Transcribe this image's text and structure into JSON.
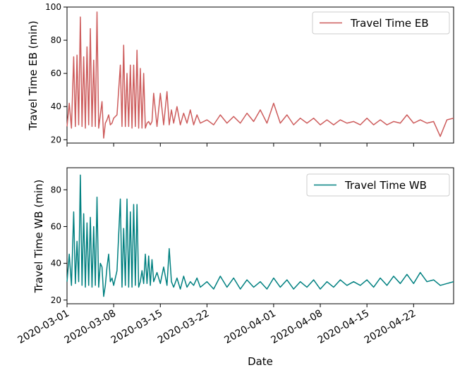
{
  "chart_data": [
    {
      "type": "line",
      "ylabel": "Travel Time EB (min)",
      "xlabel": "",
      "ylim": [
        18,
        100
      ],
      "yticks": [
        20,
        40,
        60,
        80,
        100
      ],
      "xlim": [
        "2020-03-01",
        "2020-04-28"
      ],
      "legend": "top-right",
      "grid": false,
      "series": [
        {
          "name": "Travel Time EB",
          "color": "#cd5c5c",
          "x": [
            "2020-03-01",
            "2020-03-01",
            "2020-03-01",
            "2020-03-02",
            "2020-03-02",
            "2020-03-02",
            "2020-03-02",
            "2020-03-03",
            "2020-03-03",
            "2020-03-03",
            "2020-03-03",
            "2020-03-04",
            "2020-03-04",
            "2020-03-04",
            "2020-03-04",
            "2020-03-05",
            "2020-03-05",
            "2020-03-05",
            "2020-03-05",
            "2020-03-06",
            "2020-03-06",
            "2020-03-06",
            "2020-03-06",
            "2020-03-07",
            "2020-03-07",
            "2020-03-07",
            "2020-03-07",
            "2020-03-08",
            "2020-03-08",
            "2020-03-09",
            "2020-03-09",
            "2020-03-09",
            "2020-03-09",
            "2020-03-10",
            "2020-03-10",
            "2020-03-10",
            "2020-03-10",
            "2020-03-11",
            "2020-03-11",
            "2020-03-11",
            "2020-03-11",
            "2020-03-12",
            "2020-03-12",
            "2020-03-12",
            "2020-03-12",
            "2020-03-13",
            "2020-03-13",
            "2020-03-13",
            "2020-03-13",
            "2020-03-14",
            "2020-03-14",
            "2020-03-15",
            "2020-03-15",
            "2020-03-16",
            "2020-03-16",
            "2020-03-16",
            "2020-03-17",
            "2020-03-17",
            "2020-03-18",
            "2020-03-18",
            "2020-03-19",
            "2020-03-19",
            "2020-03-20",
            "2020-03-20",
            "2020-03-21",
            "2020-03-22",
            "2020-03-23",
            "2020-03-24",
            "2020-03-25",
            "2020-03-26",
            "2020-03-27",
            "2020-03-28",
            "2020-03-29",
            "2020-03-30",
            "2020-03-31",
            "2020-04-01",
            "2020-04-02",
            "2020-04-03",
            "2020-04-04",
            "2020-04-05",
            "2020-04-06",
            "2020-04-07",
            "2020-04-08",
            "2020-04-09",
            "2020-04-10",
            "2020-04-11",
            "2020-04-12",
            "2020-04-13",
            "2020-04-14",
            "2020-04-15",
            "2020-04-16",
            "2020-04-17",
            "2020-04-18",
            "2020-04-19",
            "2020-04-20",
            "2020-04-21",
            "2020-04-22",
            "2020-04-23",
            "2020-04-24",
            "2020-04-25",
            "2020-04-26",
            "2020-04-27",
            "2020-04-28"
          ],
          "values": [
            28,
            42,
            27,
            70,
            28,
            71,
            29,
            94,
            28,
            70,
            27,
            76,
            29,
            87,
            28,
            68,
            28,
            97,
            27,
            35,
            43,
            21,
            30,
            32,
            35,
            29,
            30,
            33,
            35,
            65,
            28,
            77,
            28,
            60,
            28,
            65,
            27,
            65,
            28,
            74,
            27,
            63,
            27,
            60,
            27,
            30,
            31,
            29,
            31,
            48,
            28,
            48,
            29,
            49,
            29,
            38,
            30,
            40,
            29,
            36,
            30,
            38,
            29,
            35,
            30,
            32,
            29,
            35,
            30,
            34,
            30,
            36,
            31,
            38,
            30,
            42,
            30,
            35,
            29,
            33,
            30,
            33,
            29,
            32,
            29,
            32,
            30,
            31,
            29,
            33,
            29,
            32,
            29,
            31,
            30,
            35,
            30,
            32,
            30,
            31,
            22,
            32,
            33
          ]
        }
      ]
    },
    {
      "type": "line",
      "ylabel": "Travel Time WB (min)",
      "xlabel": "Date",
      "ylim": [
        18,
        92
      ],
      "yticks": [
        20,
        40,
        60,
        80
      ],
      "xlim": [
        "2020-03-01",
        "2020-04-28"
      ],
      "xticks": [
        "2020-03-01",
        "2020-03-08",
        "2020-03-15",
        "2020-03-22",
        "2020-04-01",
        "2020-04-08",
        "2020-04-15",
        "2020-04-22"
      ],
      "legend": "top-right",
      "grid": false,
      "series": [
        {
          "name": "Travel Time WB",
          "color": "#008080",
          "x": [
            "2020-03-01",
            "2020-03-01",
            "2020-03-01",
            "2020-03-02",
            "2020-03-02",
            "2020-03-02",
            "2020-03-02",
            "2020-03-03",
            "2020-03-03",
            "2020-03-03",
            "2020-03-03",
            "2020-03-04",
            "2020-03-04",
            "2020-03-04",
            "2020-03-04",
            "2020-03-05",
            "2020-03-05",
            "2020-03-05",
            "2020-03-05",
            "2020-03-06",
            "2020-03-06",
            "2020-03-06",
            "2020-03-06",
            "2020-03-07",
            "2020-03-07",
            "2020-03-07",
            "2020-03-07",
            "2020-03-08",
            "2020-03-08",
            "2020-03-09",
            "2020-03-09",
            "2020-03-09",
            "2020-03-09",
            "2020-03-10",
            "2020-03-10",
            "2020-03-10",
            "2020-03-10",
            "2020-03-11",
            "2020-03-11",
            "2020-03-11",
            "2020-03-11",
            "2020-03-12",
            "2020-03-12",
            "2020-03-12",
            "2020-03-12",
            "2020-03-13",
            "2020-03-13",
            "2020-03-13",
            "2020-03-13",
            "2020-03-14",
            "2020-03-14",
            "2020-03-15",
            "2020-03-15",
            "2020-03-16",
            "2020-03-16",
            "2020-03-16",
            "2020-03-17",
            "2020-03-17",
            "2020-03-18",
            "2020-03-18",
            "2020-03-19",
            "2020-03-19",
            "2020-03-20",
            "2020-03-20",
            "2020-03-21",
            "2020-03-22",
            "2020-03-23",
            "2020-03-24",
            "2020-03-25",
            "2020-03-26",
            "2020-03-27",
            "2020-03-28",
            "2020-03-29",
            "2020-03-30",
            "2020-03-31",
            "2020-04-01",
            "2020-04-02",
            "2020-04-03",
            "2020-04-04",
            "2020-04-05",
            "2020-04-06",
            "2020-04-07",
            "2020-04-08",
            "2020-04-09",
            "2020-04-10",
            "2020-04-11",
            "2020-04-12",
            "2020-04-13",
            "2020-04-14",
            "2020-04-15",
            "2020-04-16",
            "2020-04-17",
            "2020-04-18",
            "2020-04-19",
            "2020-04-20",
            "2020-04-21",
            "2020-04-22",
            "2020-04-23",
            "2020-04-24",
            "2020-04-25",
            "2020-04-26",
            "2020-04-27",
            "2020-04-28"
          ],
          "values": [
            30,
            45,
            28,
            68,
            29,
            52,
            30,
            88,
            28,
            67,
            27,
            62,
            28,
            65,
            27,
            60,
            28,
            76,
            27,
            40,
            38,
            22,
            28,
            38,
            45,
            30,
            32,
            28,
            36,
            75,
            27,
            59,
            28,
            75,
            27,
            68,
            27,
            72,
            28,
            72,
            27,
            30,
            36,
            29,
            45,
            29,
            44,
            28,
            42,
            30,
            35,
            29,
            38,
            28,
            48,
            30,
            27,
            32,
            26,
            33,
            27,
            30,
            28,
            32,
            27,
            30,
            26,
            33,
            27,
            32,
            26,
            31,
            27,
            30,
            26,
            32,
            27,
            31,
            26,
            30,
            27,
            31,
            26,
            30,
            27,
            31,
            28,
            30,
            28,
            31,
            27,
            32,
            28,
            33,
            29,
            34,
            29,
            35,
            30,
            31,
            28,
            29,
            30
          ]
        }
      ]
    }
  ]
}
